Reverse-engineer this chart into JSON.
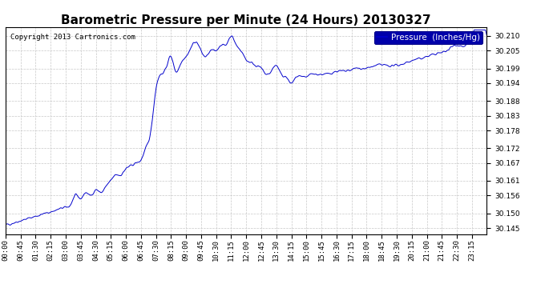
{
  "title": "Barometric Pressure per Minute (24 Hours) 20130327",
  "copyright": "Copyright 2013 Cartronics.com",
  "legend_label": "Pressure  (Inches/Hg)",
  "line_color": "#0000cc",
  "background_color": "#ffffff",
  "plot_bg_color": "#ffffff",
  "grid_color": "#c8c8c8",
  "legend_bg_color": "#0000aa",
  "legend_text_color": "#ffffff",
  "ylim": [
    30.143,
    30.213
  ],
  "yticks": [
    30.145,
    30.15,
    30.156,
    30.161,
    30.167,
    30.172,
    30.178,
    30.183,
    30.188,
    30.194,
    30.199,
    30.205,
    30.21
  ],
  "xtick_labels": [
    "00:00",
    "00:45",
    "01:30",
    "02:15",
    "03:00",
    "03:45",
    "04:30",
    "05:15",
    "06:00",
    "06:45",
    "07:30",
    "08:15",
    "09:00",
    "09:45",
    "10:30",
    "11:15",
    "12:00",
    "12:45",
    "13:30",
    "14:15",
    "15:00",
    "15:45",
    "16:30",
    "17:15",
    "18:00",
    "18:45",
    "19:30",
    "20:15",
    "21:00",
    "21:45",
    "22:30",
    "23:15"
  ],
  "title_fontsize": 11,
  "copyright_fontsize": 6.5,
  "tick_fontsize": 6.5,
  "legend_fontsize": 7.5,
  "keypoints_t": [
    0,
    0.5,
    1,
    1.5,
    2,
    2.5,
    3,
    3.25,
    3.5,
    3.75,
    4,
    4.25,
    4.5,
    4.75,
    5,
    5.25,
    5.5,
    5.75,
    6,
    6.25,
    6.5,
    6.75,
    7,
    7.25,
    7.5,
    7.75,
    8,
    8.25,
    8.5,
    8.75,
    9,
    9.25,
    9.5,
    9.75,
    10,
    10.25,
    10.5,
    10.75,
    11,
    11.25,
    11.5,
    11.75,
    12,
    12.25,
    12.5,
    12.75,
    13,
    13.25,
    13.5,
    13.75,
    14,
    14.25,
    14.5,
    14.75,
    15,
    15.25,
    15.5,
    15.75,
    16,
    16.5,
    17,
    17.5,
    18,
    18.5,
    19,
    19.5,
    20,
    20.5,
    21,
    21.5,
    22,
    22.5,
    23,
    23.25,
    24
  ],
  "keypoints_v": [
    30.146,
    30.147,
    30.148,
    30.149,
    30.15,
    30.151,
    30.152,
    30.153,
    30.156,
    30.155,
    30.157,
    30.156,
    30.158,
    30.157,
    30.159,
    30.161,
    30.163,
    30.163,
    30.165,
    30.166,
    30.167,
    30.168,
    30.172,
    30.178,
    30.192,
    30.197,
    30.199,
    30.203,
    30.198,
    30.201,
    30.203,
    30.206,
    30.208,
    30.205,
    30.203,
    30.205,
    30.205,
    30.207,
    30.207,
    30.21,
    30.207,
    30.205,
    30.202,
    30.201,
    30.2,
    30.199,
    30.197,
    30.198,
    30.2,
    30.197,
    30.196,
    30.194,
    30.196,
    30.196,
    30.196,
    30.197,
    30.197,
    30.197,
    30.197,
    30.198,
    30.198,
    30.199,
    30.199,
    30.2,
    30.2,
    30.2,
    30.201,
    30.202,
    30.203,
    30.204,
    30.205,
    30.207,
    30.207,
    30.21,
    30.21
  ],
  "noise_sigma": 2.5,
  "noise_scale": 0.00055
}
